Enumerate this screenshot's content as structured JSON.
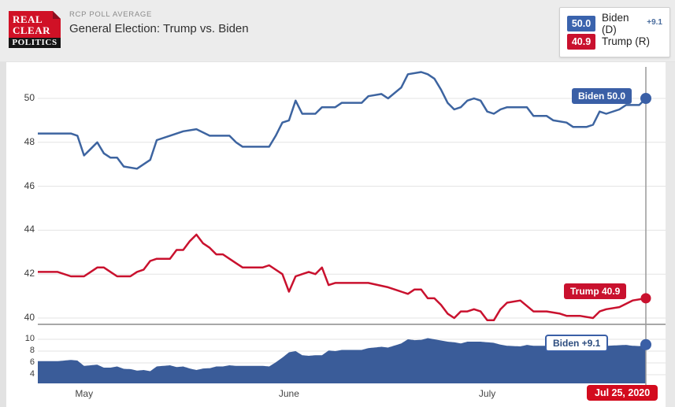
{
  "header": {
    "logo": {
      "line1": "REAL",
      "line2": "CLEAR",
      "line3": "POLITICS"
    },
    "kicker": "RCP POLL AVERAGE",
    "title": "General Election: Trump vs. Biden"
  },
  "legend": {
    "rows": [
      {
        "value": "50.0",
        "label": "Biden (D)",
        "spread": "+9.1",
        "color": "#3a63ad"
      },
      {
        "value": "40.9",
        "label": "Trump (R)",
        "spread": "",
        "color": "#c9112e"
      }
    ]
  },
  "annotations": {
    "biden_end_label": "Biden 50.0",
    "trump_end_label": "Trump 40.9",
    "spread_end_label": "Biden +9.1",
    "date_badge": "Jul 25, 2020"
  },
  "colors": {
    "biden_line": "#3d64a0",
    "trump_line": "#c9112e",
    "spread_area": "#3a5c99",
    "gridline": "#e3e3e3",
    "divider": "#a8a8a8",
    "cursor": "#9a9a9a",
    "page_band": "#ececec"
  },
  "chart_data": {
    "type": "line",
    "x_unit": "days since Apr 24 2020",
    "x_range": [
      0,
      92
    ],
    "xticks": [
      {
        "label": "May",
        "day": 7
      },
      {
        "label": "June",
        "day": 38
      },
      {
        "label": "July",
        "day": 68
      }
    ],
    "cursor_day": 92,
    "cursor_date": "Jul 25, 2020",
    "main": {
      "ylim": [
        39.6,
        51.45
      ],
      "yticks": [
        50,
        48,
        46,
        44,
        42,
        40
      ],
      "series": [
        {
          "name": "Biden (D)",
          "end_value": 50.0,
          "points": [
            [
              0,
              48.4
            ],
            [
              5,
              48.4
            ],
            [
              6,
              48.3
            ],
            [
              7,
              47.4
            ],
            [
              8,
              47.7
            ],
            [
              9,
              48.0
            ],
            [
              10,
              47.5
            ],
            [
              11,
              47.3
            ],
            [
              12,
              47.3
            ],
            [
              13,
              46.9
            ],
            [
              15,
              46.8
            ],
            [
              16,
              47.0
            ],
            [
              17,
              47.2
            ],
            [
              18,
              48.1
            ],
            [
              20,
              48.3
            ],
            [
              22,
              48.5
            ],
            [
              24,
              48.6
            ],
            [
              26,
              48.3
            ],
            [
              29,
              48.3
            ],
            [
              30,
              48.0
            ],
            [
              31,
              47.8
            ],
            [
              35,
              47.8
            ],
            [
              36,
              48.3
            ],
            [
              37,
              48.9
            ],
            [
              38,
              49.0
            ],
            [
              39,
              49.9
            ],
            [
              40,
              49.3
            ],
            [
              42,
              49.3
            ],
            [
              43,
              49.6
            ],
            [
              45,
              49.6
            ],
            [
              46,
              49.8
            ],
            [
              49,
              49.8
            ],
            [
              50,
              50.1
            ],
            [
              52,
              50.2
            ],
            [
              53,
              50.0
            ],
            [
              55,
              50.5
            ],
            [
              56,
              51.1
            ],
            [
              58,
              51.2
            ],
            [
              59,
              51.1
            ],
            [
              60,
              50.9
            ],
            [
              61,
              50.4
            ],
            [
              62,
              49.8
            ],
            [
              63,
              49.5
            ],
            [
              64,
              49.6
            ],
            [
              65,
              49.9
            ],
            [
              66,
              50.0
            ],
            [
              67,
              49.9
            ],
            [
              68,
              49.4
            ],
            [
              69,
              49.3
            ],
            [
              70,
              49.5
            ],
            [
              71,
              49.6
            ],
            [
              74,
              49.6
            ],
            [
              75,
              49.2
            ],
            [
              77,
              49.2
            ],
            [
              78,
              49.0
            ],
            [
              80,
              48.9
            ],
            [
              81,
              48.7
            ],
            [
              83,
              48.7
            ],
            [
              84,
              48.8
            ],
            [
              85,
              49.4
            ],
            [
              86,
              49.3
            ],
            [
              88,
              49.5
            ],
            [
              89,
              49.7
            ],
            [
              91,
              49.7
            ],
            [
              92,
              50.0
            ]
          ]
        },
        {
          "name": "Trump (R)",
          "end_value": 40.9,
          "points": [
            [
              0,
              42.1
            ],
            [
              3,
              42.1
            ],
            [
              5,
              41.9
            ],
            [
              7,
              41.9
            ],
            [
              8,
              42.1
            ],
            [
              9,
              42.3
            ],
            [
              10,
              42.3
            ],
            [
              11,
              42.1
            ],
            [
              12,
              41.9
            ],
            [
              14,
              41.9
            ],
            [
              15,
              42.1
            ],
            [
              16,
              42.2
            ],
            [
              17,
              42.6
            ],
            [
              18,
              42.7
            ],
            [
              20,
              42.7
            ],
            [
              21,
              43.1
            ],
            [
              22,
              43.1
            ],
            [
              23,
              43.5
            ],
            [
              24,
              43.8
            ],
            [
              25,
              43.4
            ],
            [
              26,
              43.2
            ],
            [
              27,
              42.9
            ],
            [
              28,
              42.9
            ],
            [
              29,
              42.7
            ],
            [
              30,
              42.5
            ],
            [
              31,
              42.3
            ],
            [
              34,
              42.3
            ],
            [
              35,
              42.4
            ],
            [
              37,
              42.0
            ],
            [
              38,
              41.2
            ],
            [
              39,
              41.9
            ],
            [
              40,
              42.0
            ],
            [
              41,
              42.1
            ],
            [
              42,
              42.0
            ],
            [
              43,
              42.3
            ],
            [
              44,
              41.5
            ],
            [
              45,
              41.6
            ],
            [
              50,
              41.6
            ],
            [
              53,
              41.4
            ],
            [
              55,
              41.2
            ],
            [
              56,
              41.1
            ],
            [
              57,
              41.3
            ],
            [
              58,
              41.3
            ],
            [
              59,
              40.9
            ],
            [
              60,
              40.9
            ],
            [
              61,
              40.6
            ],
            [
              62,
              40.2
            ],
            [
              63,
              40.0
            ],
            [
              64,
              40.3
            ],
            [
              65,
              40.3
            ],
            [
              66,
              40.4
            ],
            [
              67,
              40.3
            ],
            [
              68,
              39.9
            ],
            [
              69,
              39.9
            ],
            [
              70,
              40.4
            ],
            [
              71,
              40.7
            ],
            [
              73,
              40.8
            ],
            [
              75,
              40.3
            ],
            [
              77,
              40.3
            ],
            [
              79,
              40.2
            ],
            [
              80,
              40.1
            ],
            [
              82,
              40.1
            ],
            [
              84,
              40.0
            ],
            [
              85,
              40.3
            ],
            [
              86,
              40.4
            ],
            [
              88,
              40.5
            ],
            [
              90,
              40.8
            ],
            [
              92,
              40.9
            ]
          ]
        }
      ]
    },
    "spread": {
      "name": "Biden spread",
      "derived": "Biden minus Trump",
      "ylim": [
        2.5,
        12.5
      ],
      "yticks": [
        10,
        8,
        6,
        4
      ],
      "end_value": 9.1
    }
  }
}
